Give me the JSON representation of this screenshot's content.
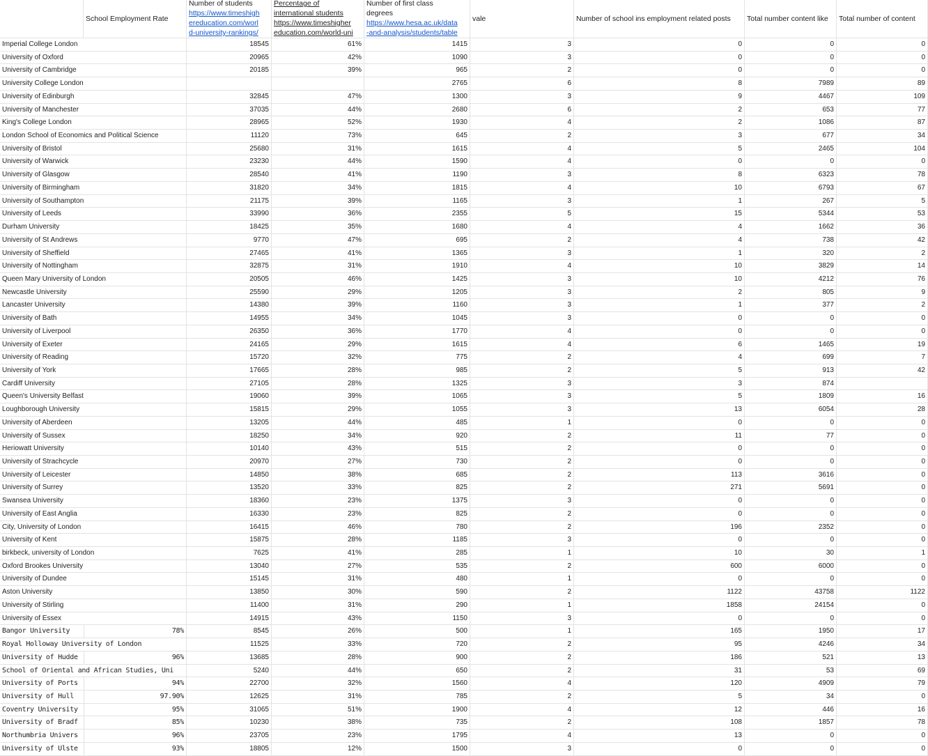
{
  "headers": {
    "name": "",
    "rate": "School Employment Rate",
    "students": {
      "title": "Number of students",
      "link": [
        "https://www.timeshigh",
        "ereducation.com/worl",
        "d-university-rankings/"
      ]
    },
    "intl": {
      "title": [
        "Percentage of",
        "international students"
      ],
      "link": [
        "https://www.timeshigher",
        "education.com/world-uni"
      ]
    },
    "first": {
      "title": [
        "Number of first class",
        "degrees"
      ],
      "link": [
        "https://www.hesa.ac.uk/data",
        "-and-analysis/students/table"
      ]
    },
    "vale": "vale",
    "posts": "Number of school ins employment related posts",
    "likes": "Total number content like",
    "content": "Total number of content"
  },
  "rows": [
    [
      "Imperial College London",
      "",
      "18545",
      "61%",
      "1415",
      "3",
      "0",
      "0",
      "0"
    ],
    [
      "University of Oxford",
      "",
      "20965",
      "42%",
      "1090",
      "3",
      "0",
      "0",
      "0"
    ],
    [
      "University of Cambridge",
      "",
      "20185",
      "39%",
      "965",
      "2",
      "0",
      "0",
      "0"
    ],
    [
      "University College London",
      "",
      "",
      "",
      "2765",
      "6",
      "8",
      "7989",
      "89"
    ],
    [
      "University of Edinburgh",
      "",
      "32845",
      "47%",
      "1300",
      "3",
      "9",
      "4467",
      "109"
    ],
    [
      "University of Manchester",
      "",
      "37035",
      "44%",
      "2680",
      "6",
      "2",
      "653",
      "77"
    ],
    [
      "King's College London",
      "",
      "28965",
      "52%",
      "1930",
      "4",
      "2",
      "1086",
      "87"
    ],
    [
      "London School of Economics and Political Science",
      "",
      "11120",
      "73%",
      "645",
      "2",
      "3",
      "677",
      "34"
    ],
    [
      "University of Bristol",
      "",
      "25680",
      "31%",
      "1615",
      "4",
      "5",
      "2465",
      "104"
    ],
    [
      "University of Warwick",
      "",
      "23230",
      "44%",
      "1590",
      "4",
      "0",
      "0",
      "0"
    ],
    [
      "University of Glasgow",
      "",
      "28540",
      "41%",
      "1190",
      "3",
      "8",
      "6323",
      "78"
    ],
    [
      "University of Birmingham",
      "",
      "31820",
      "34%",
      "1815",
      "4",
      "10",
      "6793",
      "67"
    ],
    [
      "University of Southampton",
      "",
      "21175",
      "39%",
      "1165",
      "3",
      "1",
      "267",
      "5"
    ],
    [
      "University of Leeds",
      "",
      "33990",
      "36%",
      "2355",
      "5",
      "15",
      "5344",
      "53"
    ],
    [
      "Durham University",
      "",
      "18425",
      "35%",
      "1680",
      "4",
      "4",
      "1662",
      "36"
    ],
    [
      "University of St Andrews",
      "",
      "9770",
      "47%",
      "695",
      "2",
      "4",
      "738",
      "42"
    ],
    [
      "University of Sheffield",
      "",
      "27465",
      "41%",
      "1365",
      "3",
      "1",
      "320",
      "2"
    ],
    [
      "University of Nottingham",
      "",
      "32875",
      "31%",
      "1910",
      "4",
      "10",
      "3829",
      "14"
    ],
    [
      "Queen Mary University of London",
      "",
      "20505",
      "46%",
      "1425",
      "3",
      "10",
      "4212",
      "76"
    ],
    [
      "Newcastle University",
      "",
      "25590",
      "29%",
      "1205",
      "3",
      "2",
      "805",
      "9"
    ],
    [
      "Lancaster University",
      "",
      "14380",
      "39%",
      "1160",
      "3",
      "1",
      "377",
      "2"
    ],
    [
      "University of Bath",
      "",
      "14955",
      "34%",
      "1045",
      "3",
      "0",
      "0",
      "0"
    ],
    [
      "University of Liverpool",
      "",
      "26350",
      "36%",
      "1770",
      "4",
      "0",
      "0",
      "0"
    ],
    [
      "University of Exeter",
      "",
      "24165",
      "29%",
      "1615",
      "4",
      "6",
      "1465",
      "19"
    ],
    [
      "University of Reading",
      "",
      "15720",
      "32%",
      "775",
      "2",
      "4",
      "699",
      "7"
    ],
    [
      "University of York",
      "",
      "17665",
      "28%",
      "985",
      "2",
      "5",
      "913",
      "42"
    ],
    [
      "Cardiff University",
      "",
      "27105",
      "28%",
      "1325",
      "3",
      "3",
      "874",
      ""
    ],
    [
      "Queen's University Belfast",
      "",
      "19060",
      "39%",
      "1065",
      "3",
      "5",
      "1809",
      "16"
    ],
    [
      "Loughborough University",
      "",
      "15815",
      "29%",
      "1055",
      "3",
      "13",
      "6054",
      "28"
    ],
    [
      "University of Aberdeen",
      "",
      "13205",
      "44%",
      "485",
      "1",
      "0",
      "0",
      "0"
    ],
    [
      "University of Sussex",
      "",
      "18250",
      "34%",
      "920",
      "2",
      "11",
      "77",
      "0"
    ],
    [
      "Heriowatt University",
      "",
      "10140",
      "43%",
      "515",
      "2",
      "0",
      "0",
      "0"
    ],
    [
      "University of Strachcycle",
      "",
      "20970",
      "27%",
      "730",
      "2",
      "0",
      "0",
      "0"
    ],
    [
      "University of Leicester",
      "",
      "14850",
      "38%",
      "685",
      "2",
      "113",
      "3616",
      "0"
    ],
    [
      "University of Surrey",
      "",
      "13520",
      "33%",
      "825",
      "2",
      "271",
      "5691",
      "0"
    ],
    [
      "Swansea University",
      "",
      "18360",
      "23%",
      "1375",
      "3",
      "0",
      "0",
      "0"
    ],
    [
      "University of East Anglia",
      "",
      "16330",
      "23%",
      "825",
      "2",
      "0",
      "0",
      "0"
    ],
    [
      "City, University of London",
      "",
      "16415",
      "46%",
      "780",
      "2",
      "196",
      "2352",
      "0"
    ],
    [
      "University of Kent",
      "",
      "15875",
      "28%",
      "1185",
      "3",
      "0",
      "0",
      "0"
    ],
    [
      "birkbeck, university of London",
      "",
      "7625",
      "41%",
      "285",
      "1",
      "10",
      "30",
      "1"
    ],
    [
      "Oxford Brookes University",
      "",
      "13040",
      "27%",
      "535",
      "2",
      "600",
      "6000",
      "0"
    ],
    [
      "University of Dundee",
      "",
      "15145",
      "31%",
      "480",
      "1",
      "0",
      "0",
      "0"
    ],
    [
      "Aston University",
      "",
      "13850",
      "30%",
      "590",
      "2",
      "1122",
      "43758",
      "1122"
    ],
    [
      "University of Stirling",
      "",
      "11400",
      "31%",
      "290",
      "1",
      "1858",
      "24154",
      "0"
    ],
    [
      "University of Essex",
      "",
      "14915",
      "43%",
      "1150",
      "3",
      "0",
      "0",
      "0"
    ],
    [
      "Bangor University",
      "78%",
      "8545",
      "26%",
      "500",
      "1",
      "165",
      "1950",
      "17"
    ],
    [
      "Royal Holloway University of London",
      "",
      "11525",
      "33%",
      "720",
      "2",
      "95",
      "4246",
      "34"
    ],
    [
      "University of Hudde",
      "96%",
      "13685",
      "28%",
      "900",
      "2",
      "186",
      "521",
      "13"
    ],
    [
      "School of Oriental and African Studies, Uni",
      "",
      "5240",
      "44%",
      "650",
      "2",
      "31",
      "53",
      "69"
    ],
    [
      "University of Ports",
      "94%",
      "22700",
      "32%",
      "1560",
      "4",
      "120",
      "4909",
      "79"
    ],
    [
      "University of Hull",
      "97.90%",
      "12625",
      "31%",
      "785",
      "2",
      "5",
      "34",
      "0"
    ],
    [
      "Coventry University",
      "95%",
      "31065",
      "51%",
      "1900",
      "4",
      "12",
      "446",
      "16"
    ],
    [
      "University of Bradf",
      "85%",
      "10230",
      "38%",
      "735",
      "2",
      "108",
      "1857",
      "78"
    ],
    [
      "Northumbria Univers",
      "96%",
      "23705",
      "23%",
      "1795",
      "4",
      "13",
      "0",
      "0"
    ],
    [
      "University of Ulste",
      "93%",
      "18805",
      "12%",
      "1500",
      "3",
      "0",
      "0",
      "0"
    ]
  ]
}
